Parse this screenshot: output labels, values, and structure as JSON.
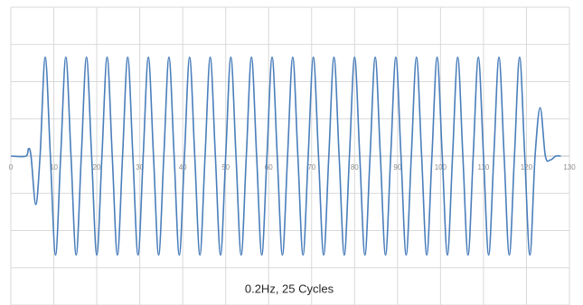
{
  "chart_data": {
    "type": "line",
    "title": "0.2Hz, 25 Cycles",
    "color": "#4a7ebb",
    "grid": true,
    "xlim": [
      0,
      130
    ],
    "xticks": [
      0,
      10,
      20,
      30,
      40,
      50,
      60,
      70,
      80,
      90,
      100,
      110,
      120,
      130
    ],
    "ylim": [
      -2,
      2
    ],
    "yticks": [
      -2,
      -1.5,
      -1,
      -0.5,
      0,
      0.5,
      1,
      1.5,
      2
    ],
    "x": [
      0,
      3.5,
      4.1,
      4.7,
      5.8,
      6.8,
      8,
      9.2,
      10.4,
      11.6,
      12.8,
      14,
      15.2,
      16.4,
      17.6,
      18.8,
      20,
      21.2,
      22.4,
      23.6,
      24.8,
      26,
      27.2,
      28.4,
      29.6,
      30.8,
      32,
      33.2,
      34.4,
      35.6,
      36.8,
      38,
      39.2,
      40.4,
      41.6,
      42.8,
      44,
      45.2,
      46.4,
      47.6,
      48.8,
      50,
      51.2,
      52.4,
      53.6,
      54.8,
      56,
      57.2,
      58.4,
      59.6,
      60.8,
      62,
      63.2,
      64.4,
      65.6,
      66.8,
      68,
      69.2,
      70.4,
      71.6,
      72.8,
      74,
      75.2,
      76.4,
      77.6,
      78.8,
      80,
      81.2,
      82.4,
      83.6,
      84.8,
      86,
      87.2,
      88.4,
      89.6,
      90.8,
      92,
      93.2,
      94.4,
      95.6,
      96.8,
      98,
      99.2,
      100.4,
      101.6,
      102.8,
      104,
      105.2,
      106.4,
      107.6,
      108.8,
      110,
      111.2,
      112.4,
      113.6,
      114.8,
      116,
      117.2,
      118.4,
      119.6,
      120.8,
      122,
      123.2,
      124.4,
      125.6,
      126.8,
      128
    ],
    "values": [
      0,
      0,
      0.1,
      0,
      -0.65,
      0,
      1.33,
      0,
      -1.33,
      0,
      1.33,
      0,
      -1.33,
      0,
      1.33,
      0,
      -1.33,
      0,
      1.33,
      0,
      -1.33,
      0,
      1.33,
      0,
      -1.33,
      0,
      1.33,
      0,
      -1.33,
      0,
      1.33,
      0,
      -1.33,
      0,
      1.33,
      0,
      -1.33,
      0,
      1.33,
      0,
      -1.33,
      0,
      1.33,
      0,
      -1.33,
      0,
      1.33,
      0,
      -1.33,
      0,
      1.33,
      0,
      -1.33,
      0,
      1.33,
      0,
      -1.33,
      0,
      1.33,
      0,
      -1.33,
      0,
      1.33,
      0,
      -1.33,
      0,
      1.33,
      0,
      -1.33,
      0,
      1.33,
      0,
      -1.33,
      0,
      1.33,
      0,
      -1.33,
      0,
      1.33,
      0,
      -1.33,
      0,
      1.33,
      0,
      -1.33,
      0,
      1.33,
      0,
      -1.33,
      0,
      1.33,
      0,
      -1.33,
      0,
      1.33,
      0,
      -1.33,
      0,
      1.33,
      0,
      -1.33,
      0,
      0.65,
      0,
      -0.05,
      0,
      0
    ]
  }
}
